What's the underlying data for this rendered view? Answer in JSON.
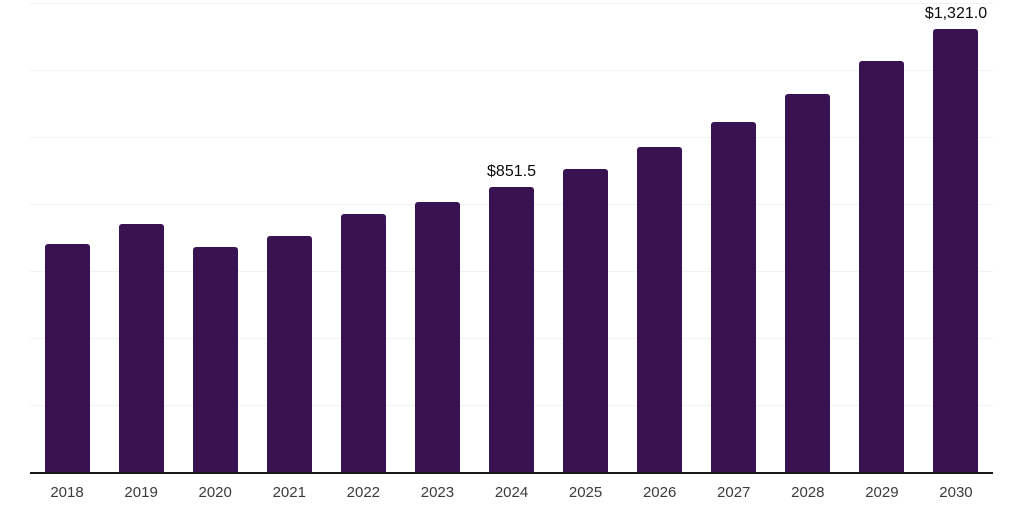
{
  "chart_data": {
    "type": "bar",
    "title": "",
    "xlabel": "",
    "ylabel": "",
    "categories": [
      "2018",
      "2019",
      "2020",
      "2021",
      "2022",
      "2023",
      "2024",
      "2025",
      "2026",
      "2027",
      "2028",
      "2029",
      "2030"
    ],
    "values": [
      682,
      739,
      673,
      703,
      771,
      807,
      851.5,
      905,
      970,
      1045,
      1127,
      1228,
      1321
    ],
    "data_labels": {
      "2024": "$851.5",
      "2030": "$1,321.0"
    },
    "ylim": [
      0,
      1400
    ],
    "grid_step": 200,
    "grid": "horizontal gridlines only, no y-axis tick labels",
    "legend": "none",
    "colors": {
      "bar": "#391252",
      "axis_line": "#1a1a1a",
      "gridline": "#f2f2f2",
      "value_label": "#0b0b0b",
      "tick_label": "#3b3b3b",
      "background": "#ffffff"
    }
  }
}
